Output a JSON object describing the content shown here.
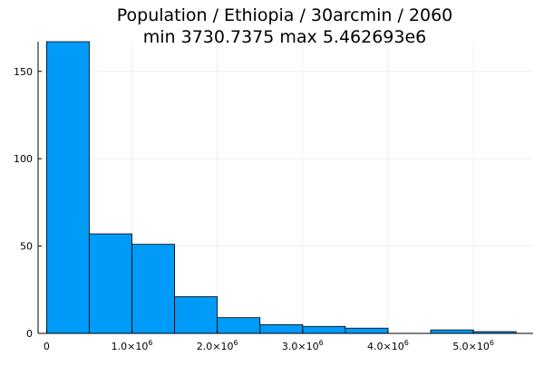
{
  "chart_data": {
    "type": "bar",
    "title_line1": "Population / Ethiopia / 30arcmin / 2060",
    "title_line2": "min 3730.7375  max 5.462693e6",
    "xlabel": "",
    "ylabel": "",
    "bin_edges": [
      0,
      500000,
      1000000,
      1500000,
      2000000,
      2500000,
      3000000,
      3500000,
      4000000,
      4500000,
      5000000,
      5500000
    ],
    "values": [
      167,
      57,
      51,
      21,
      9,
      5,
      4,
      3,
      0,
      2,
      1
    ],
    "xlim": [
      -100000,
      5700000
    ],
    "ylim": [
      0,
      167
    ],
    "x_ticks": [
      {
        "value": 0,
        "label": "0",
        "exp": ""
      },
      {
        "value": 1000000,
        "label": "1.0×10",
        "exp": "6"
      },
      {
        "value": 2000000,
        "label": "2.0×10",
        "exp": "6"
      },
      {
        "value": 3000000,
        "label": "3.0×10",
        "exp": "6"
      },
      {
        "value": 4000000,
        "label": "4.0×10",
        "exp": "6"
      },
      {
        "value": 5000000,
        "label": "5.0×10",
        "exp": "6"
      }
    ],
    "y_ticks": [
      {
        "value": 0,
        "label": "0"
      },
      {
        "value": 50,
        "label": "50"
      },
      {
        "value": 100,
        "label": "100"
      },
      {
        "value": 150,
        "label": "150"
      }
    ],
    "grid": true,
    "legend": "none",
    "colors": {
      "bar_fill": "#009af9",
      "bar_stroke": "#000000",
      "grid": "#e6e6e6",
      "axis": "#000000",
      "text": "#000000"
    }
  }
}
